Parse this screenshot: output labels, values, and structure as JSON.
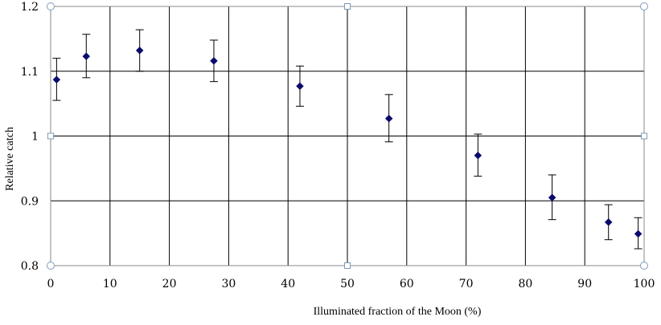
{
  "chart_data": {
    "type": "scatter",
    "title": "",
    "xlabel": "Illuminated fraction of the Moon (%)",
    "ylabel": "Relative catch",
    "xlim": [
      0,
      100
    ],
    "ylim": [
      0.8,
      1.2
    ],
    "x_ticks": [
      "0",
      "10",
      "20",
      "30",
      "40",
      "50",
      "60",
      "70",
      "80",
      "90",
      "100"
    ],
    "y_ticks": [
      "0.8",
      "0.9",
      "1",
      "1.1",
      "1.2"
    ],
    "grid": true,
    "legend": "none",
    "marker": "diamond",
    "marker_color": "#0a0a6e",
    "selection_handles": true,
    "points": [
      {
        "x": 1,
        "y": 1.087,
        "err_low": 1.055,
        "err_high": 1.12
      },
      {
        "x": 6,
        "y": 1.123,
        "err_low": 1.09,
        "err_high": 1.157
      },
      {
        "x": 15,
        "y": 1.132,
        "err_low": 1.1,
        "err_high": 1.164
      },
      {
        "x": 27.5,
        "y": 1.116,
        "err_low": 1.084,
        "err_high": 1.148
      },
      {
        "x": 42,
        "y": 1.077,
        "err_low": 1.046,
        "err_high": 1.108
      },
      {
        "x": 57,
        "y": 1.027,
        "err_low": 0.991,
        "err_high": 1.064
      },
      {
        "x": 72,
        "y": 0.97,
        "err_low": 0.938,
        "err_high": 1.003
      },
      {
        "x": 84.5,
        "y": 0.905,
        "err_low": 0.871,
        "err_high": 0.94
      },
      {
        "x": 94,
        "y": 0.867,
        "err_low": 0.84,
        "err_high": 0.894
      },
      {
        "x": 99,
        "y": 0.849,
        "err_low": 0.826,
        "err_high": 0.874
      }
    ]
  }
}
